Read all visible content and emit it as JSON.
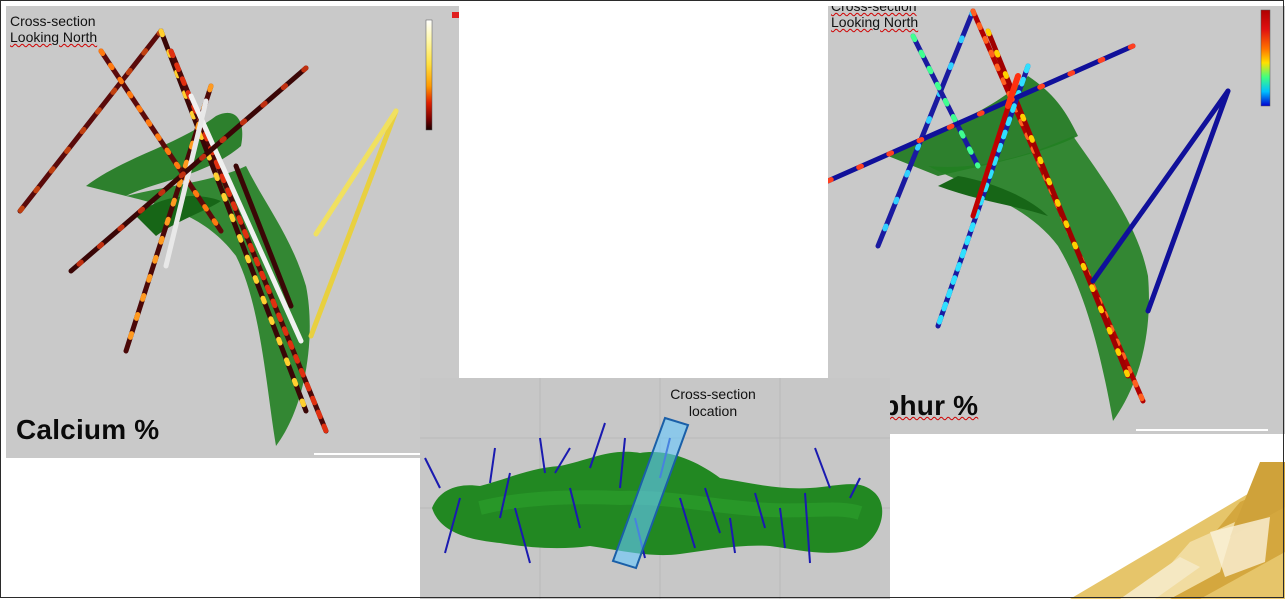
{
  "left_panel": {
    "caption_line1": "Cross-section",
    "caption_line2": "Looking North",
    "label": "Calcium %",
    "colorbar": [
      "#ffffff",
      "#fff7a0",
      "#ffe040",
      "#ff9a00",
      "#e02000",
      "#7a0000",
      "#1a0000"
    ]
  },
  "right_panel": {
    "caption_line1": "Cross-section",
    "caption_line2": "Looking North",
    "label": "Sulphur %",
    "colorbar": [
      "#b00000",
      "#e01010",
      "#ff7000",
      "#ffe000",
      "#40ff80",
      "#00c0ff",
      "#0000d0"
    ]
  },
  "bottom_panel": {
    "label_line1": "Cross-section",
    "label_line2": "location"
  },
  "colors": {
    "panel_background": "#c9c9c9",
    "orebody_green": "#1f7a1f",
    "marker_fill": "#66c8ff",
    "marker_stroke": "#1a5fa8",
    "drill_trace_blue": "#1a1aa0",
    "decoration_gold": "#d9b24a"
  }
}
